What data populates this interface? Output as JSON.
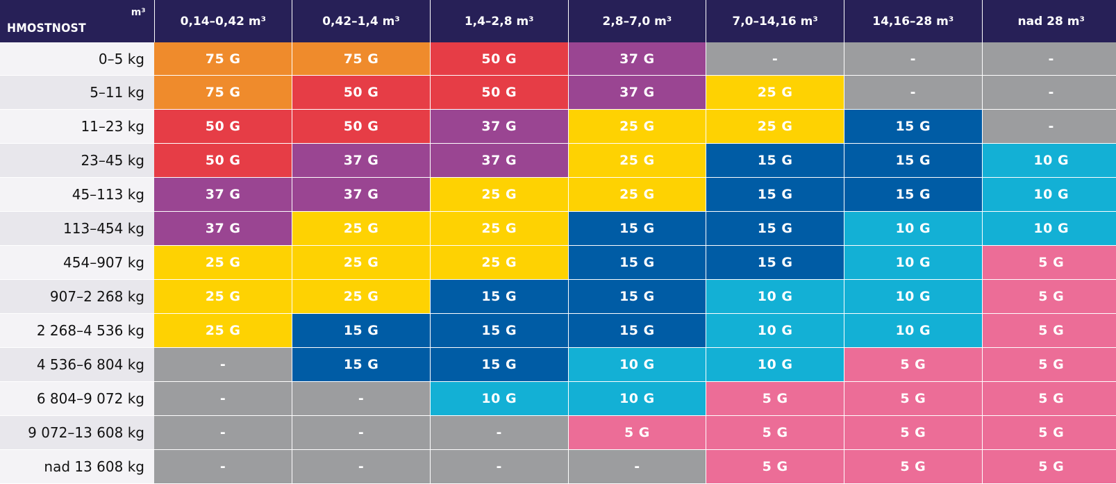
{
  "chart_data": {
    "type": "heatmap",
    "corner": {
      "row_header": "HMOSTNOST",
      "col_unit": "m³"
    },
    "columns": [
      "0,14–0,42 m³",
      "0,42–1,4 m³",
      "1,4–2,8 m³",
      "2,8–7,0 m³",
      "7,0–14,16 m³",
      "14,16–28 m³",
      "nad 28 m³"
    ],
    "rows": [
      {
        "label": "0–5 kg",
        "values": [
          "75 G",
          "75 G",
          "50 G",
          "37 G",
          "-",
          "-",
          "-"
        ]
      },
      {
        "label": "5–11 kg",
        "values": [
          "75 G",
          "50 G",
          "50 G",
          "37 G",
          "25 G",
          "-",
          "-"
        ]
      },
      {
        "label": "11–23 kg",
        "values": [
          "50 G",
          "50 G",
          "37 G",
          "25 G",
          "25 G",
          "15 G",
          "-"
        ]
      },
      {
        "label": "23–45 kg",
        "values": [
          "50 G",
          "37 G",
          "37 G",
          "25 G",
          "15 G",
          "15 G",
          "10 G"
        ]
      },
      {
        "label": "45–113 kg",
        "values": [
          "37 G",
          "37 G",
          "25 G",
          "25 G",
          "15 G",
          "15 G",
          "10 G"
        ]
      },
      {
        "label": "113–454 kg",
        "values": [
          "37 G",
          "25 G",
          "25 G",
          "15 G",
          "15 G",
          "10 G",
          "10 G"
        ]
      },
      {
        "label": "454–907 kg",
        "values": [
          "25 G",
          "25 G",
          "25 G",
          "15 G",
          "15 G",
          "10 G",
          "5 G"
        ]
      },
      {
        "label": "907–2 268 kg",
        "values": [
          "25 G",
          "25 G",
          "15 G",
          "15 G",
          "10 G",
          "10 G",
          "5 G"
        ]
      },
      {
        "label": "2 268–4 536 kg",
        "values": [
          "25 G",
          "15 G",
          "15 G",
          "15 G",
          "10 G",
          "10 G",
          "5 G"
        ]
      },
      {
        "label": "4 536–6 804 kg",
        "values": [
          "-",
          "15 G",
          "15 G",
          "10 G",
          "10 G",
          "5 G",
          "5 G"
        ]
      },
      {
        "label": "6 804–9 072 kg",
        "values": [
          "-",
          "-",
          "10 G",
          "10 G",
          "5 G",
          "5 G",
          "5 G"
        ]
      },
      {
        "label": "9 072–13 608 kg",
        "values": [
          "-",
          "-",
          "-",
          "5 G",
          "5 G",
          "5 G",
          "5 G"
        ]
      },
      {
        "label": "nad 13 608 kg",
        "values": [
          "-",
          "-",
          "-",
          "-",
          "5 G",
          "5 G",
          "5 G"
        ]
      }
    ],
    "colors": {
      "75 G": "#ef8b2c",
      "50 G": "#e63d46",
      "37 G": "#9a4592",
      "25 G": "#fed202",
      "15 G": "#005ca5",
      "10 G": "#13b0d5",
      "5 G": "#ec6d97",
      "-": "#9c9d9f"
    },
    "header_color": "#272057"
  }
}
